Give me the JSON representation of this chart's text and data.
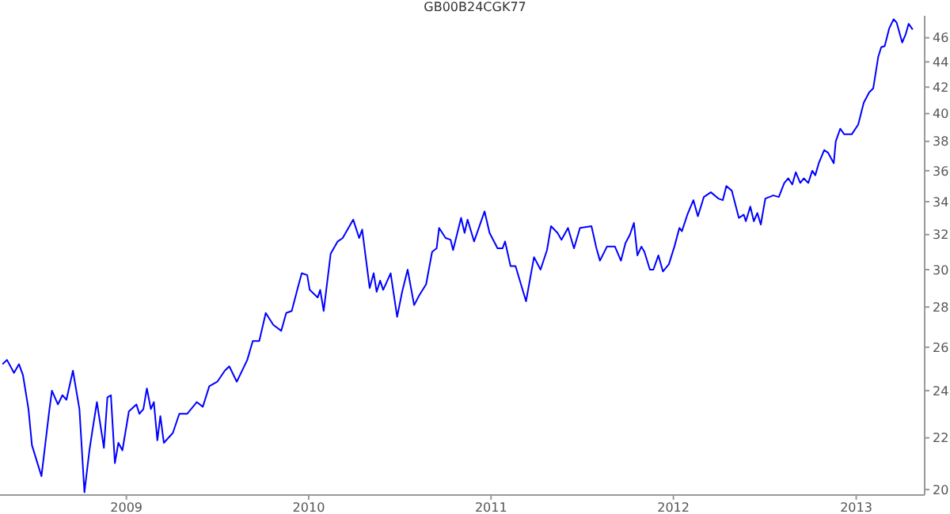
{
  "chart_data": {
    "type": "line",
    "title": "GB00B24CGK77",
    "log": "y",
    "xlim": [
      "2008-04-23",
      "2013-05-18"
    ],
    "xticks": [
      "2009",
      "2010",
      "2011",
      "2012",
      "2013"
    ],
    "ylim": [
      19.8,
      47.9
    ],
    "yticks": [
      20,
      22,
      24,
      26,
      28,
      30,
      32,
      34,
      36,
      38,
      40,
      42,
      44,
      46
    ],
    "x": [
      "2008-04-28",
      "2008-05-07",
      "2008-05-21",
      "2008-05-31",
      "2008-06-08",
      "2008-06-19",
      "2008-06-26",
      "2008-07-15",
      "2008-07-31",
      "2008-08-05",
      "2008-08-17",
      "2008-08-26",
      "2008-09-03",
      "2008-09-16",
      "2008-09-29",
      "2008-10-09",
      "2008-10-19",
      "2008-10-25",
      "2008-11-03",
      "2008-11-17",
      "2008-11-24",
      "2008-12-01",
      "2008-12-09",
      "2008-12-16",
      "2008-12-24",
      "2009-01-06",
      "2009-01-21",
      "2009-01-27",
      "2009-02-04",
      "2009-02-11",
      "2009-02-19",
      "2009-02-25",
      "2009-03-04",
      "2009-03-10",
      "2009-03-17",
      "2009-04-04",
      "2009-04-17",
      "2009-05-03",
      "2009-05-22",
      "2009-06-03",
      "2009-06-16",
      "2009-07-02",
      "2009-07-17",
      "2009-07-26",
      "2009-08-10",
      "2009-08-31",
      "2009-09-11",
      "2009-09-24",
      "2009-10-07",
      "2009-10-22",
      "2009-11-07",
      "2009-11-17",
      "2009-11-28",
      "2009-12-10",
      "2009-12-18",
      "2009-12-29",
      "2010-01-03",
      "2010-01-19",
      "2010-01-24",
      "2010-01-31",
      "2010-02-14",
      "2010-02-28",
      "2010-03-10",
      "2010-03-31",
      "2010-04-12",
      "2010-04-18",
      "2010-05-03",
      "2010-05-11",
      "2010-05-17",
      "2010-05-24",
      "2010-05-30",
      "2010-06-14",
      "2010-06-27",
      "2010-07-07",
      "2010-07-18",
      "2010-07-31",
      "2010-08-10",
      "2010-08-24",
      "2010-09-05",
      "2010-09-14",
      "2010-09-19",
      "2010-10-02",
      "2010-10-12",
      "2010-10-17",
      "2010-11-02",
      "2010-11-09",
      "2010-11-15",
      "2010-11-28",
      "2010-12-19",
      "2010-12-29",
      "2011-01-14",
      "2011-01-24",
      "2011-01-29",
      "2011-02-09",
      "2011-02-19",
      "2011-03-12",
      "2011-03-28",
      "2011-04-10",
      "2011-04-23",
      "2011-05-01",
      "2011-05-14",
      "2011-05-22",
      "2011-06-04",
      "2011-06-16",
      "2011-06-28",
      "2011-07-21",
      "2011-07-31",
      "2011-08-07",
      "2011-08-21",
      "2011-09-06",
      "2011-09-18",
      "2011-09-27",
      "2011-10-06",
      "2011-10-14",
      "2011-10-21",
      "2011-10-29",
      "2011-11-04",
      "2011-11-15",
      "2011-11-22",
      "2011-12-02",
      "2011-12-11",
      "2011-12-23",
      "2012-01-03",
      "2012-01-13",
      "2012-01-18",
      "2012-01-29",
      "2012-02-10",
      "2012-02-19",
      "2012-03-02",
      "2012-03-16",
      "2012-03-31",
      "2012-04-09",
      "2012-04-16",
      "2012-04-27",
      "2012-05-11",
      "2012-05-21",
      "2012-05-25",
      "2012-06-03",
      "2012-06-10",
      "2012-06-17",
      "2012-06-24",
      "2012-07-03",
      "2012-07-19",
      "2012-07-30",
      "2012-08-10",
      "2012-08-18",
      "2012-08-26",
      "2012-09-02",
      "2012-09-11",
      "2012-09-18",
      "2012-09-27",
      "2012-10-05",
      "2012-10-11",
      "2012-10-18",
      "2012-10-29",
      "2012-11-06",
      "2012-11-17",
      "2012-11-21",
      "2012-11-30",
      "2012-12-08",
      "2012-12-23",
      "2013-01-05",
      "2013-01-16",
      "2013-01-27",
      "2013-02-04",
      "2013-02-14",
      "2013-02-20",
      "2013-02-27",
      "2013-03-08",
      "2013-03-17",
      "2013-03-23",
      "2013-04-03",
      "2013-04-10",
      "2013-04-16",
      "2013-04-24"
    ],
    "series": [
      {
        "color": "#0000ff",
        "values": [
          25.2,
          25.4,
          24.8,
          25.2,
          24.7,
          23.2,
          21.7,
          20.5,
          23.2,
          24.0,
          23.4,
          23.8,
          23.6,
          24.9,
          23.2,
          19.9,
          21.5,
          22.3,
          23.5,
          21.6,
          23.7,
          23.8,
          21.0,
          21.8,
          21.5,
          23.1,
          23.4,
          23.0,
          23.2,
          24.1,
          23.2,
          23.5,
          21.9,
          22.9,
          21.8,
          22.2,
          23.0,
          23.0,
          23.5,
          23.3,
          24.2,
          24.4,
          24.9,
          25.1,
          24.4,
          25.4,
          26.3,
          26.3,
          27.7,
          27.1,
          26.8,
          27.7,
          27.8,
          29.0,
          29.8,
          29.7,
          28.9,
          28.5,
          28.9,
          27.8,
          30.9,
          31.6,
          31.8,
          32.9,
          31.8,
          32.3,
          29.0,
          29.8,
          28.8,
          29.4,
          28.9,
          29.8,
          27.5,
          28.8,
          30.0,
          28.1,
          28.6,
          29.2,
          31.0,
          31.2,
          32.4,
          31.8,
          31.7,
          31.1,
          33.0,
          32.1,
          32.9,
          31.6,
          33.4,
          32.1,
          31.2,
          31.2,
          31.6,
          30.2,
          30.2,
          28.3,
          30.7,
          30.0,
          31.1,
          32.5,
          32.1,
          31.7,
          32.4,
          31.2,
          32.4,
          32.5,
          31.2,
          30.5,
          31.3,
          31.3,
          30.5,
          31.5,
          32.0,
          32.7,
          30.8,
          31.3,
          31.0,
          30.0,
          30.0,
          30.8,
          29.9,
          30.3,
          31.3,
          32.4,
          32.2,
          33.2,
          34.1,
          33.1,
          34.3,
          34.6,
          34.2,
          34.1,
          35.0,
          34.7,
          33.0,
          33.2,
          32.8,
          33.7,
          32.8,
          33.3,
          32.6,
          34.2,
          34.4,
          34.3,
          35.2,
          35.5,
          35.1,
          35.9,
          35.2,
          35.5,
          35.2,
          36.0,
          35.7,
          36.5,
          37.4,
          37.2,
          36.5,
          38.0,
          38.9,
          38.5,
          38.5,
          39.2,
          40.8,
          41.6,
          41.9,
          44.4,
          45.2,
          45.3,
          46.8,
          47.6,
          47.3,
          45.6,
          46.3,
          47.2,
          46.7
        ]
      }
    ]
  }
}
